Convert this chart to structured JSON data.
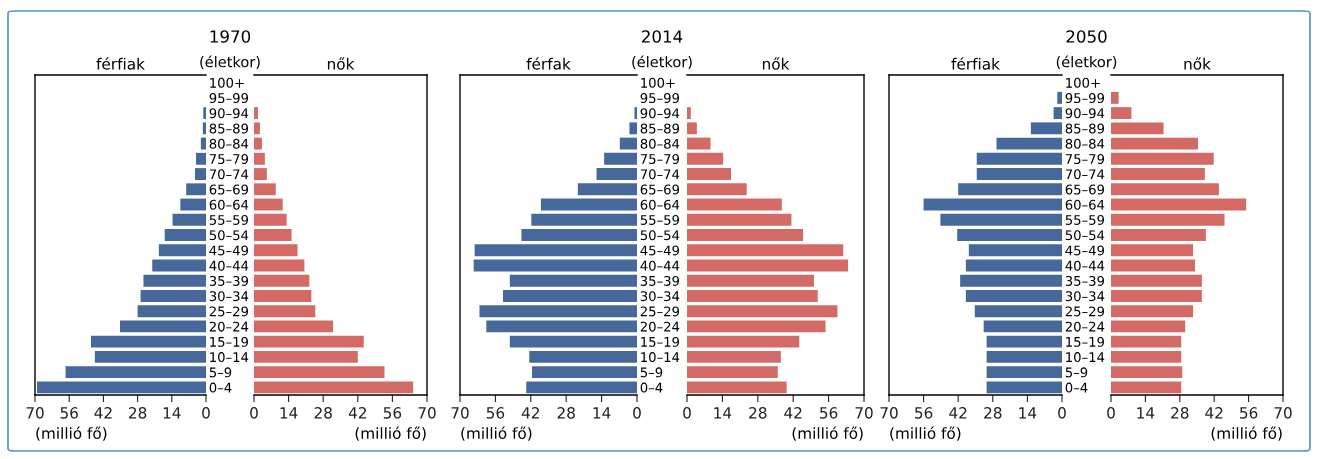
{
  "chart_data": [
    {
      "type": "bar",
      "orientation": "horizontal",
      "title": "1970",
      "subtitle": "férfiak",
      "ylabel": "(életkor)",
      "xlabel": "(millió fő)",
      "categories": [
        "100+",
        "95–99",
        "90–94",
        "85–89",
        "80–84",
        "75–79",
        "70–74",
        "65–69",
        "60–64",
        "55–59",
        "50–54",
        "45–49",
        "40–44",
        "35–39",
        "30–34",
        "25–29",
        "20–24",
        "15–19",
        "10–14",
        "5–9",
        "0–4"
      ],
      "series": [
        {
          "color": "#46689a",
          "values": [
            0,
            0,
            1.1,
            1.3,
            2.1,
            4.1,
            4.5,
            8.1,
            10.5,
            13.7,
            16.9,
            19.3,
            22.0,
            25.6,
            26.8,
            28.0,
            35.2,
            47.1,
            45.5,
            57.5,
            69.2
          ]
        }
      ],
      "xlim": [
        70,
        0
      ],
      "xticks": [
        70,
        56,
        42,
        28,
        14,
        0
      ]
    },
    {
      "type": "bar",
      "orientation": "horizontal",
      "subtitle": "nők",
      "xlabel": "(millió fő)",
      "categories": [
        null,
        null,
        null,
        null,
        null,
        null,
        null,
        null,
        null,
        null,
        null,
        null,
        null,
        null,
        null,
        null,
        null,
        null,
        null,
        null,
        null
      ],
      "series": [
        {
          "color": "#d46a66",
          "values": [
            0,
            0,
            1.6,
            2.4,
            3.2,
            4.4,
            5.2,
            8.8,
            11.6,
            13.2,
            15.2,
            17.6,
            20.4,
            22.4,
            23.2,
            24.8,
            32.0,
            44.4,
            42.0,
            52.8,
            64.4
          ]
        }
      ],
      "xlim": [
        0,
        70
      ],
      "xticks": [
        0,
        14,
        28,
        42,
        56,
        70
      ]
    },
    {
      "type": "bar",
      "orientation": "horizontal",
      "title": "2014",
      "subtitle": "férfak",
      "ylabel": "(életkor)",
      "xlabel": "(millió fő)",
      "categories": [
        "100+",
        "95–99",
        "90–94",
        "85–89",
        "80–84",
        "75–79",
        "70–74",
        "65–69",
        "60–64",
        "55–59",
        "50–54",
        "45–49",
        "40–44",
        "35–39",
        "30–34",
        "25–29",
        "20–24",
        "15–19",
        "10–14",
        "5–9",
        "0–4"
      ],
      "series": [
        {
          "color": "#46689a",
          "values": [
            0,
            0,
            1.0,
            3.0,
            6.8,
            13.0,
            16.0,
            23.4,
            38.0,
            41.8,
            45.7,
            64.2,
            64.6,
            50.3,
            53.0,
            62.3,
            59.6,
            50.3,
            42.6,
            41.5,
            43.8
          ]
        }
      ],
      "xlim": [
        70,
        0
      ],
      "xticks": [
        70,
        56,
        42,
        28,
        14,
        0
      ]
    },
    {
      "type": "bar",
      "orientation": "horizontal",
      "subtitle": "nők",
      "xlabel": "(millió fő)",
      "categories": [
        null,
        null,
        null,
        null,
        null,
        null,
        null,
        null,
        null,
        null,
        null,
        null,
        null,
        null,
        null,
        null,
        null,
        null,
        null,
        null,
        null
      ],
      "series": [
        {
          "color": "#d46a66",
          "values": [
            0,
            0,
            1.5,
            3.9,
            9.3,
            14.3,
            17.4,
            23.6,
            37.5,
            41.3,
            45.9,
            61.8,
            63.7,
            50.2,
            51.7,
            59.5,
            54.8,
            44.4,
            37.1,
            35.9,
            39.4
          ]
        }
      ],
      "xlim": [
        0,
        70
      ],
      "xticks": [
        0,
        14,
        28,
        42,
        56,
        70
      ]
    },
    {
      "type": "bar",
      "orientation": "horizontal",
      "title": "2050",
      "subtitle": "férfiak",
      "ylabel": "(életkor)",
      "xlabel": "(millió fő)",
      "categories": [
        "100+",
        "95–99",
        "90–94",
        "85–89",
        "80–84",
        "75–79",
        "70–74",
        "65–69",
        "60–64",
        "55–59",
        "50–54",
        "45–49",
        "40–44",
        "35–39",
        "30–34",
        "25–29",
        "20–24",
        "15–19",
        "10–14",
        "5–9",
        "0–4"
      ],
      "series": [
        {
          "color": "#46689a",
          "values": [
            0,
            1.9,
            3.4,
            12.6,
            26.5,
            34.5,
            34.5,
            42.0,
            56.0,
            49.2,
            42.4,
            37.7,
            38.9,
            41.2,
            38.9,
            35.3,
            31.7,
            30.5,
            30.5,
            30.5,
            30.5
          ]
        }
      ],
      "xlim": [
        70,
        0
      ],
      "xticks": [
        70,
        56,
        42,
        28,
        14,
        0
      ]
    },
    {
      "type": "bar",
      "orientation": "horizontal",
      "subtitle": "nők",
      "xlabel": "(millió fő)",
      "categories": [
        null,
        null,
        null,
        null,
        null,
        null,
        null,
        null,
        null,
        null,
        null,
        null,
        null,
        null,
        null,
        null,
        null,
        null,
        null,
        null,
        null
      ],
      "series": [
        {
          "color": "#d46a66",
          "values": [
            0,
            3.1,
            8.3,
            21.4,
            35.4,
            41.8,
            38.2,
            43.9,
            55.0,
            46.2,
            38.6,
            33.4,
            34.2,
            37.0,
            37.0,
            33.4,
            30.2,
            28.6,
            28.6,
            29.0,
            28.6
          ]
        }
      ],
      "xlim": [
        0,
        70
      ],
      "xticks": [
        0,
        14,
        28,
        42,
        56,
        70
      ]
    }
  ]
}
